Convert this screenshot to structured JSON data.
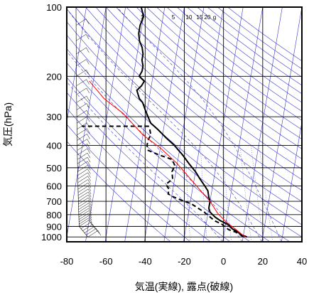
{
  "chart_data": {
    "type": "line",
    "subtype": "skew-T log-p thermodynamic diagram",
    "title": "",
    "xlabel": "気温(実線), 露点(破線)",
    "ylabel": "気圧(hPa)",
    "xlim": [
      -80,
      40
    ],
    "ylim": [
      1050,
      100
    ],
    "y_scale": "log",
    "x_ticks": [
      -80,
      -60,
      -40,
      -20,
      0,
      20,
      40
    ],
    "y_ticks": [
      100,
      200,
      300,
      400,
      500,
      600,
      700,
      800,
      900,
      1000
    ],
    "grid": true,
    "mixing_ratio_labels": [
      "1",
      "5",
      "10",
      "15",
      "20",
      "g"
    ],
    "colors": {
      "temperature": "#000000",
      "dewpoint": "#000000",
      "parcel": "#ff0000",
      "isotherms_adiabats": "#3a3acc",
      "grid": "#000000"
    },
    "series": [
      {
        "key": "temperature",
        "style": "solid",
        "points": [
          [
            12,
            1000
          ],
          [
            9,
            980
          ],
          [
            7,
            950
          ],
          [
            4,
            925
          ],
          [
            1,
            880
          ],
          [
            -3,
            850
          ],
          [
            -6,
            820
          ],
          [
            -9,
            780
          ],
          [
            -10,
            750
          ],
          [
            -10,
            700
          ],
          [
            -11,
            670
          ],
          [
            -12,
            630
          ],
          [
            -14,
            600
          ],
          [
            -17,
            560
          ],
          [
            -20,
            520
          ],
          [
            -24,
            480
          ],
          [
            -28,
            440
          ],
          [
            -33,
            400
          ],
          [
            -38,
            370
          ],
          [
            -43,
            340
          ],
          [
            -47,
            320
          ],
          [
            -49,
            300
          ],
          [
            -51,
            280
          ],
          [
            -53,
            260
          ],
          [
            -55,
            250
          ],
          [
            -56,
            240
          ],
          [
            -57,
            230
          ],
          [
            -55,
            220
          ],
          [
            -54,
            210
          ],
          [
            -57,
            200
          ],
          [
            -56,
            190
          ],
          [
            -56,
            180
          ],
          [
            -57,
            170
          ],
          [
            -57,
            160
          ],
          [
            -58,
            150
          ],
          [
            -60,
            140
          ],
          [
            -61,
            130
          ],
          [
            -61,
            120
          ],
          [
            -60,
            110
          ],
          [
            -62,
            100
          ]
        ]
      },
      {
        "key": "dewpoint",
        "style": "dashed",
        "points": [
          [
            10,
            1000
          ],
          [
            7,
            960
          ],
          [
            2,
            930
          ],
          [
            -2,
            880
          ],
          [
            -6,
            850
          ],
          [
            -12,
            780
          ],
          [
            -19,
            720
          ],
          [
            -25,
            690
          ],
          [
            -29,
            670
          ],
          [
            -32,
            650
          ],
          [
            -32,
            620
          ],
          [
            -34,
            590
          ],
          [
            -31,
            560
          ],
          [
            -32,
            520
          ],
          [
            -31,
            490
          ],
          [
            -33,
            460
          ],
          [
            -40,
            440
          ],
          [
            -46,
            420
          ],
          [
            -47,
            400
          ],
          [
            -47,
            380
          ],
          [
            -46,
            360
          ],
          [
            -47,
            340
          ],
          [
            -48,
            330
          ],
          [
            -68,
            330
          ],
          [
            -82,
            330
          ]
        ]
      },
      {
        "key": "parcel",
        "style": "solid",
        "points": [
          [
            11,
            1000
          ],
          [
            5,
            920
          ],
          [
            0,
            860
          ],
          [
            -5,
            790
          ],
          [
            -10,
            700
          ],
          [
            -14,
            650
          ],
          [
            -20,
            580
          ],
          [
            -30,
            480
          ],
          [
            -40,
            410
          ],
          [
            -50,
            360
          ],
          [
            -62,
            290
          ],
          [
            -73,
            250
          ],
          [
            -82,
            210
          ]
        ]
      }
    ]
  }
}
